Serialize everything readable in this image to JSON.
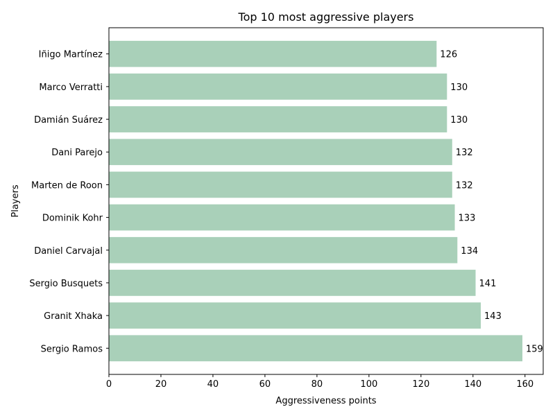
{
  "chart_data": {
    "type": "bar",
    "orientation": "horizontal",
    "title": "Top 10 most aggressive players",
    "xlabel": "Aggressiveness points",
    "ylabel": "Players",
    "xlim": [
      0,
      167
    ],
    "xticks": [
      0,
      20,
      40,
      60,
      80,
      100,
      120,
      140,
      160
    ],
    "categories": [
      "Iñigo Martínez",
      "Marco Verratti",
      "Damián Suárez",
      "Dani Parejo",
      "Marten de Roon",
      "Dominik Kohr",
      "Daniel Carvajal",
      "Sergio Busquets",
      "Granit Xhaka",
      "Sergio Ramos"
    ],
    "values": [
      126,
      130,
      130,
      132,
      132,
      133,
      134,
      141,
      143,
      159
    ],
    "bar_color": "#a9d0b9",
    "grid": false,
    "data_labels": true
  }
}
